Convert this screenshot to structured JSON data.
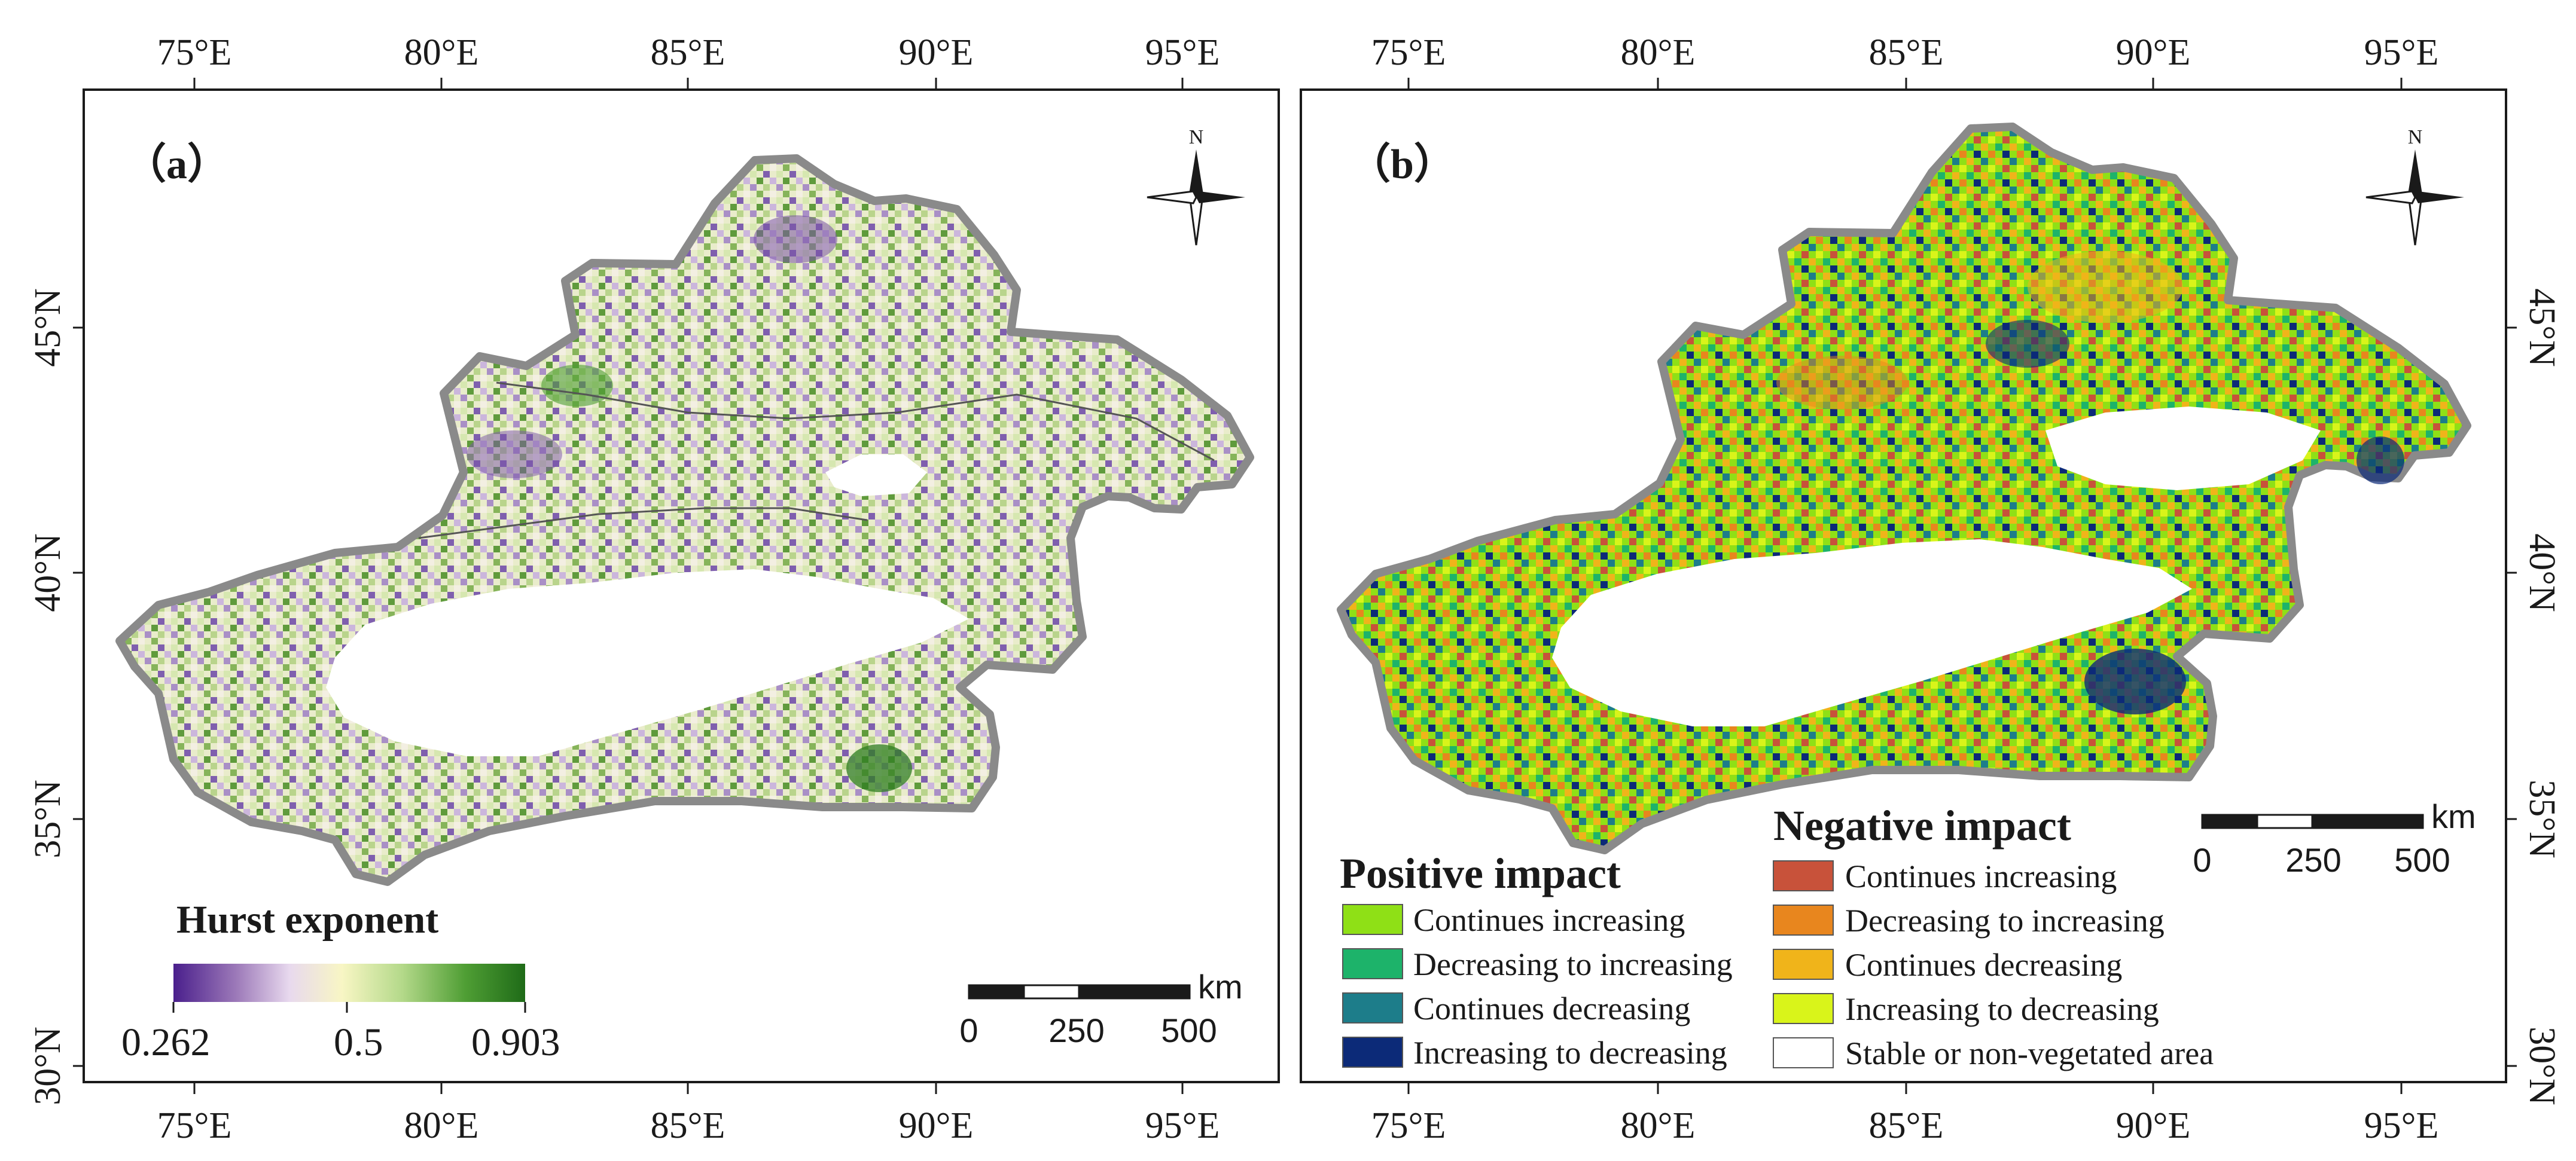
{
  "panels": {
    "a": {
      "label": "（a）",
      "legend": {
        "title": "Hurst exponent",
        "min_label": "0.262",
        "mid_label": "0.5",
        "max_label": "0.903",
        "colors": [
          "#4a1f8c",
          "#9d7ab9",
          "#e8d9ee",
          "#f6f4bf",
          "#a9d47a",
          "#4f9e34",
          "#1f6b18"
        ]
      },
      "scalebar": {
        "unit": "km",
        "labels": [
          "0",
          "250",
          "500"
        ]
      }
    },
    "b": {
      "label": "（b）",
      "positive_title": "Positive impact",
      "negative_title": "Negative impact",
      "positive_items": [
        {
          "label": "Continues increasing",
          "color": "#8fe016"
        },
        {
          "label": "Decreasing to increasing",
          "color": "#1db36a"
        },
        {
          "label": "Continues decreasing",
          "color": "#1d7d8a"
        },
        {
          "label": "Increasing to decreasing",
          "color": "#0c2a78"
        }
      ],
      "negative_items": [
        {
          "label": "Continues increasing",
          "color": "#c8523a"
        },
        {
          "label": "Decreasing to increasing",
          "color": "#e8861e"
        },
        {
          "label": "Continues decreasing",
          "color": "#f0b41a"
        },
        {
          "label": "Increasing to decreasing",
          "color": "#d9f41a"
        },
        {
          "label": "Stable or non-vegetated area",
          "color": "#ffffff"
        }
      ],
      "scalebar": {
        "unit": "km",
        "labels": [
          "0",
          "250",
          "500"
        ]
      }
    }
  },
  "axes": {
    "lon_labels": [
      "75°E",
      "80°E",
      "85°E",
      "90°E",
      "95°E"
    ],
    "lat_labels": [
      "45°N",
      "40°N",
      "35°N",
      "30°N"
    ]
  },
  "north_arrow_label": "N",
  "colors": {
    "boundary": "#8a8a8a",
    "frame": "#1a1a1a"
  }
}
